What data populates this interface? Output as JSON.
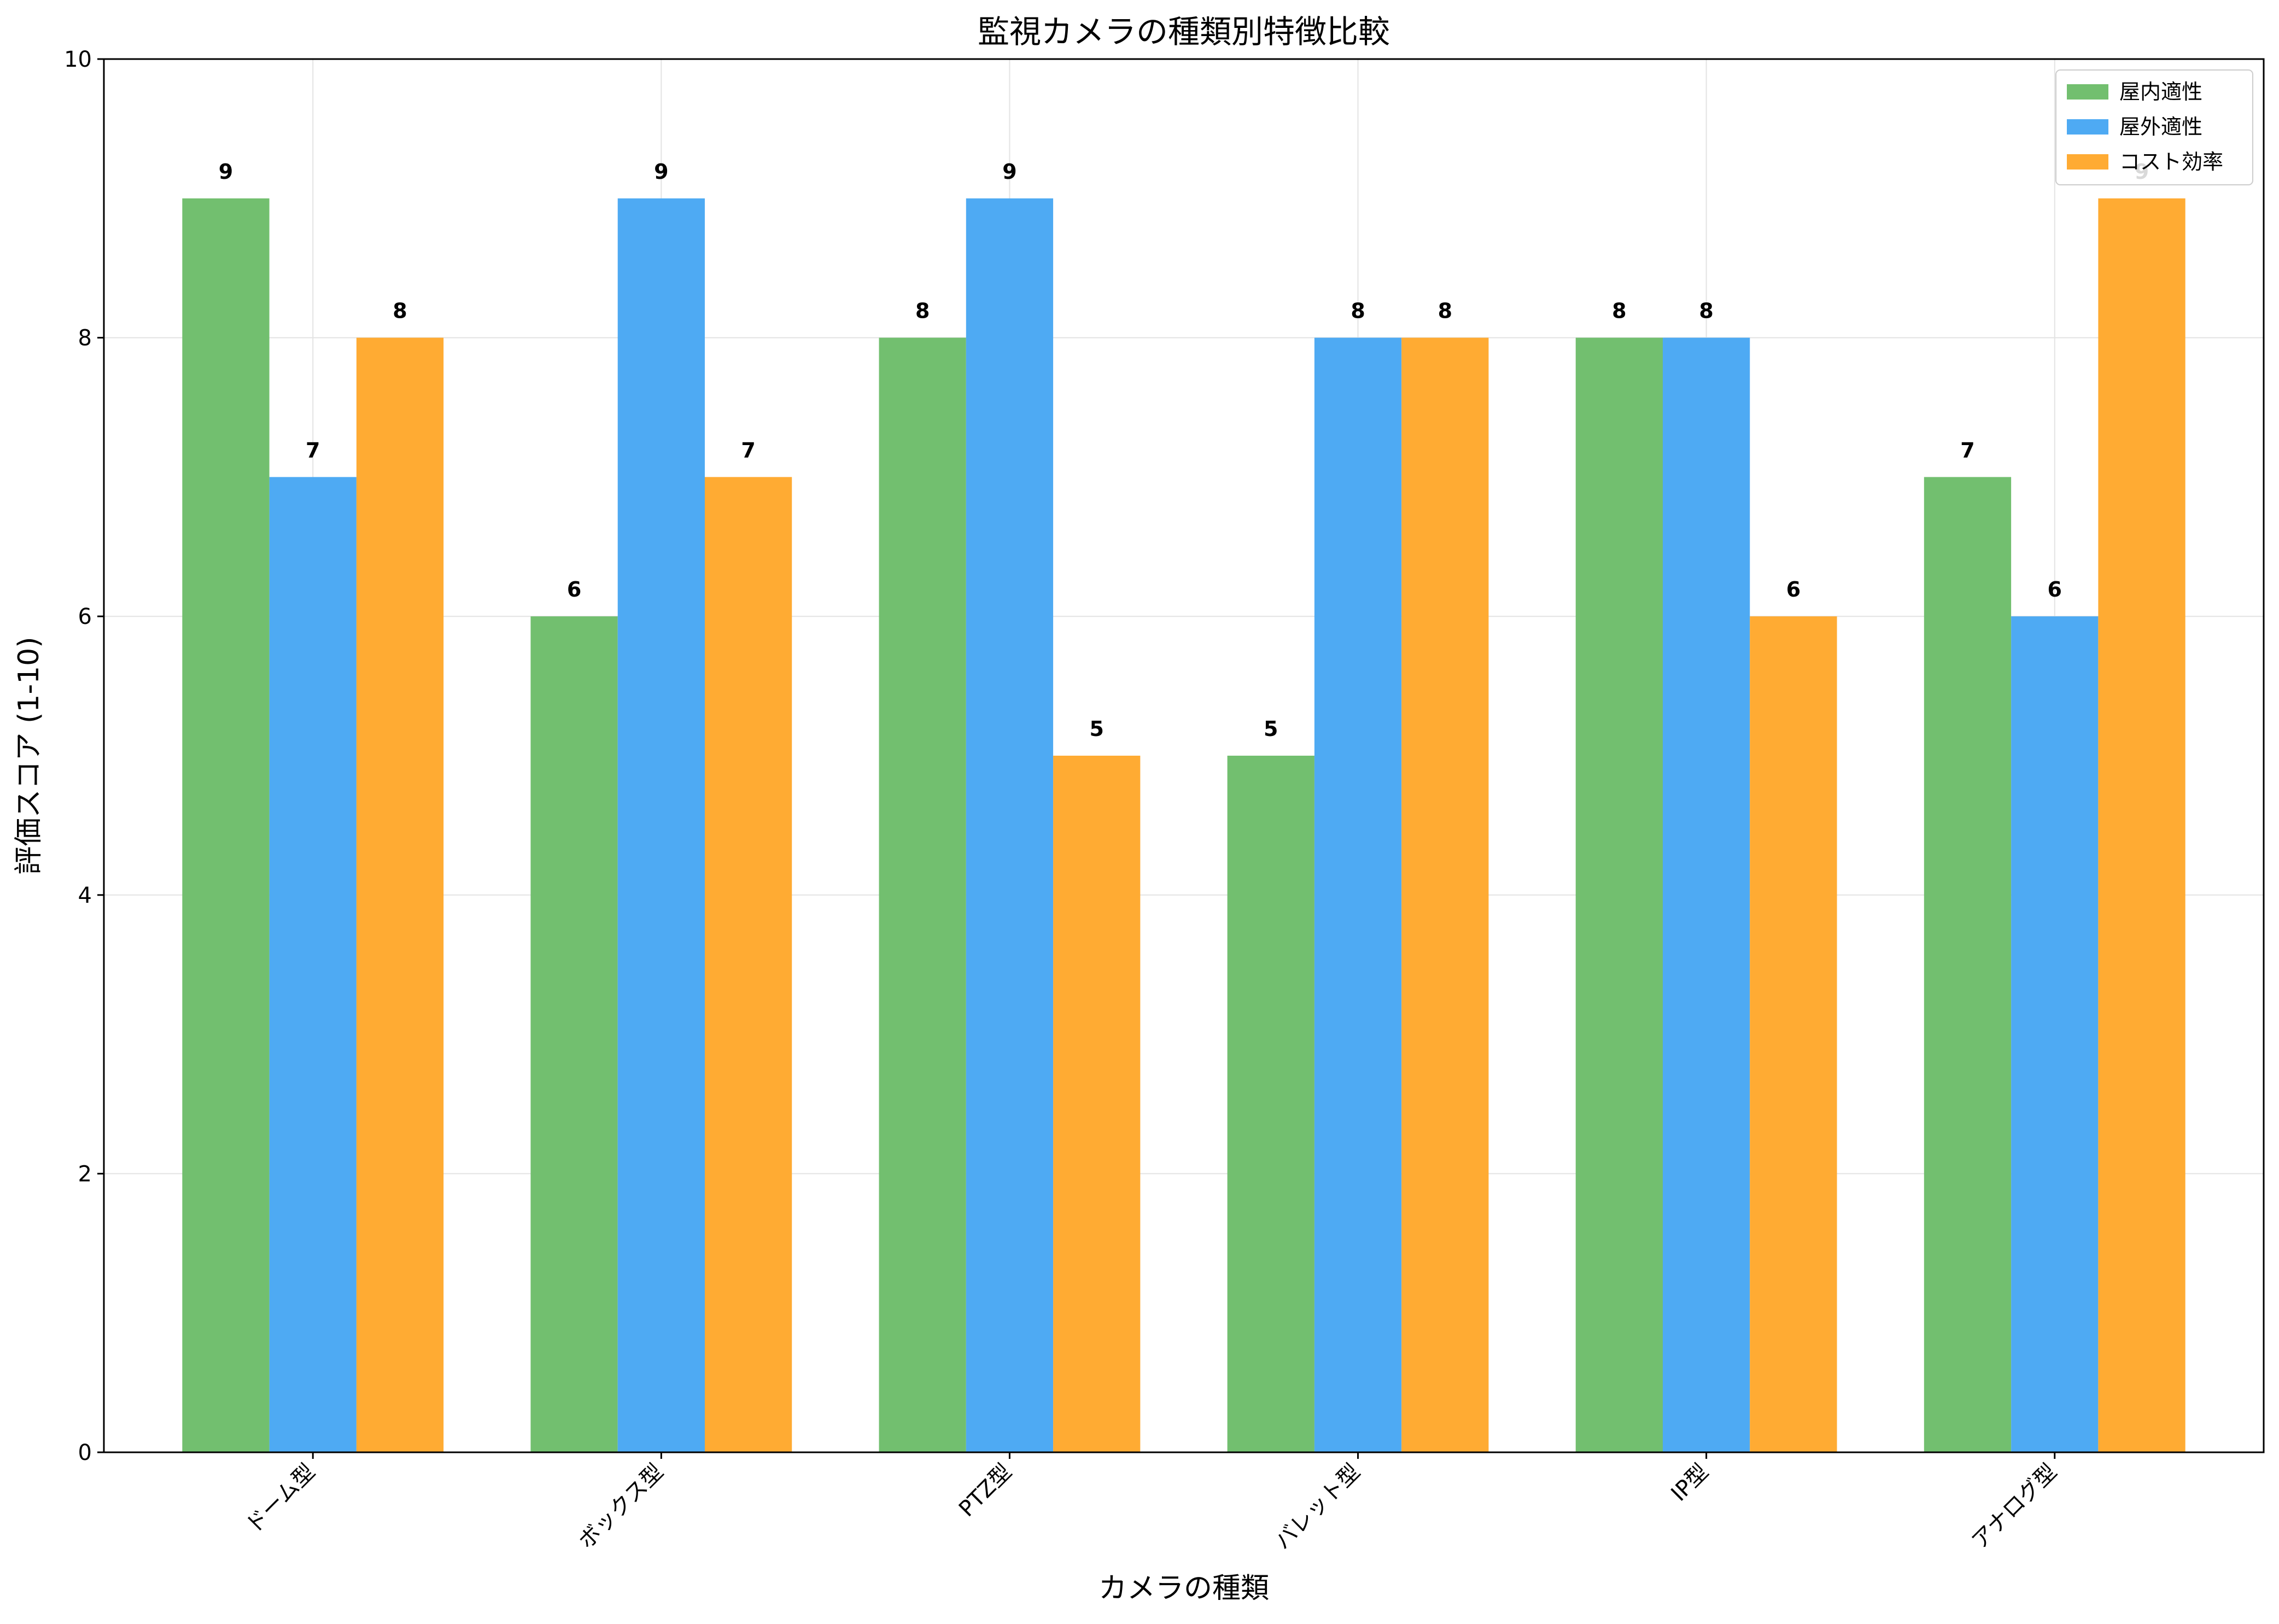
{
  "chart_data": {
    "type": "bar",
    "title": "監視カメラの種類別特徴比較",
    "xlabel": "カメラの種類",
    "ylabel": "評価スコア (1-10)",
    "categories": [
      "ドーム型",
      "ボックス型",
      "PTZ型",
      "バレット型",
      "IP型",
      "アナログ型"
    ],
    "series": [
      {
        "name": "屋内適性",
        "values": [
          9,
          6,
          8,
          5,
          8,
          7
        ],
        "color": "#72bf6f"
      },
      {
        "name": "屋外適性",
        "values": [
          7,
          9,
          9,
          8,
          8,
          6
        ],
        "color": "#4eaaf3"
      },
      {
        "name": "コスト効率",
        "values": [
          8,
          7,
          5,
          8,
          6,
          9
        ],
        "color": "#ffab33"
      }
    ],
    "ylim": [
      0,
      10
    ],
    "yticks": [
      0,
      2,
      4,
      6,
      8,
      10
    ],
    "grid": true,
    "legend": "top-right"
  }
}
